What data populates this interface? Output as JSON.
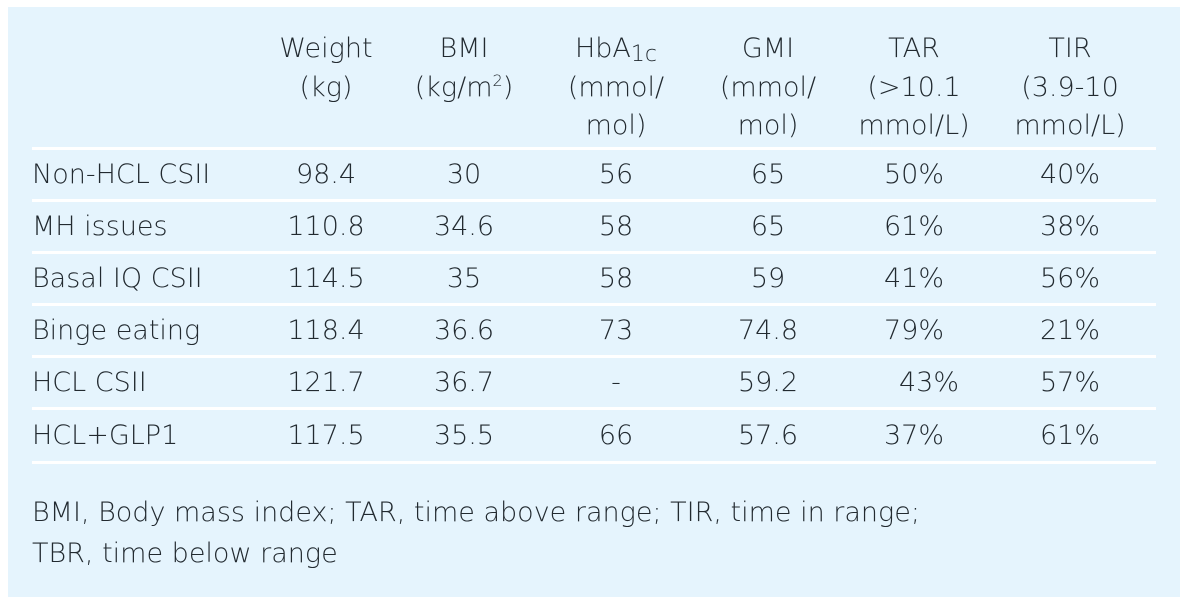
{
  "table": {
    "headers": {
      "weight": [
        "Weight",
        "(kg)"
      ],
      "bmi": [
        "BMI",
        "(kg/m",
        "2",
        ")"
      ],
      "hba1c": [
        "HbA",
        "1c",
        "(mmol/",
        "mol)"
      ],
      "gmi": [
        "GMI",
        "(mmol/",
        "mol)"
      ],
      "tar": [
        "TAR",
        "(>10.1",
        "mmol/L)"
      ],
      "tir": [
        "TIR",
        "(3.9-10",
        "mmol/L)"
      ]
    },
    "rows": [
      {
        "label": "Non-HCL CSII",
        "weight": "98.4",
        "bmi": "30",
        "hba1c": "56",
        "gmi": "65",
        "tar": "50%",
        "tir": "40%"
      },
      {
        "label": "MH issues",
        "weight": "110.8",
        "bmi": "34.6",
        "hba1c": "58",
        "gmi": "65",
        "tar": "61%",
        "tir": "38%"
      },
      {
        "label": "Basal IQ CSII",
        "weight": "114.5",
        "bmi": "35",
        "hba1c": "58",
        "gmi": "59",
        "tar": "41%",
        "tir": "56%"
      },
      {
        "label": "Binge eating",
        "weight": "118.4",
        "bmi": "36.6",
        "hba1c": "73",
        "gmi": "74.8",
        "tar": "79%",
        "tir": "21%"
      },
      {
        "label": "HCL CSII",
        "weight": "121.7",
        "bmi": "36.7",
        "hba1c": "-",
        "gmi": "59.2",
        "tar": "43%",
        "tir": "57%"
      },
      {
        "label": "HCL+GLP1",
        "weight": "117.5",
        "bmi": "35.5",
        "hba1c": "66",
        "gmi": "57.6",
        "tar": "37%",
        "tir": "61%"
      }
    ]
  },
  "footnote": [
    "BMI, Body mass index; TAR, time above range; TIR, time in range;",
    "TBR, time below range"
  ],
  "colors": {
    "panel_background": "#e5f4fd",
    "row_divider": "#ffffff",
    "text": "#222a30"
  }
}
